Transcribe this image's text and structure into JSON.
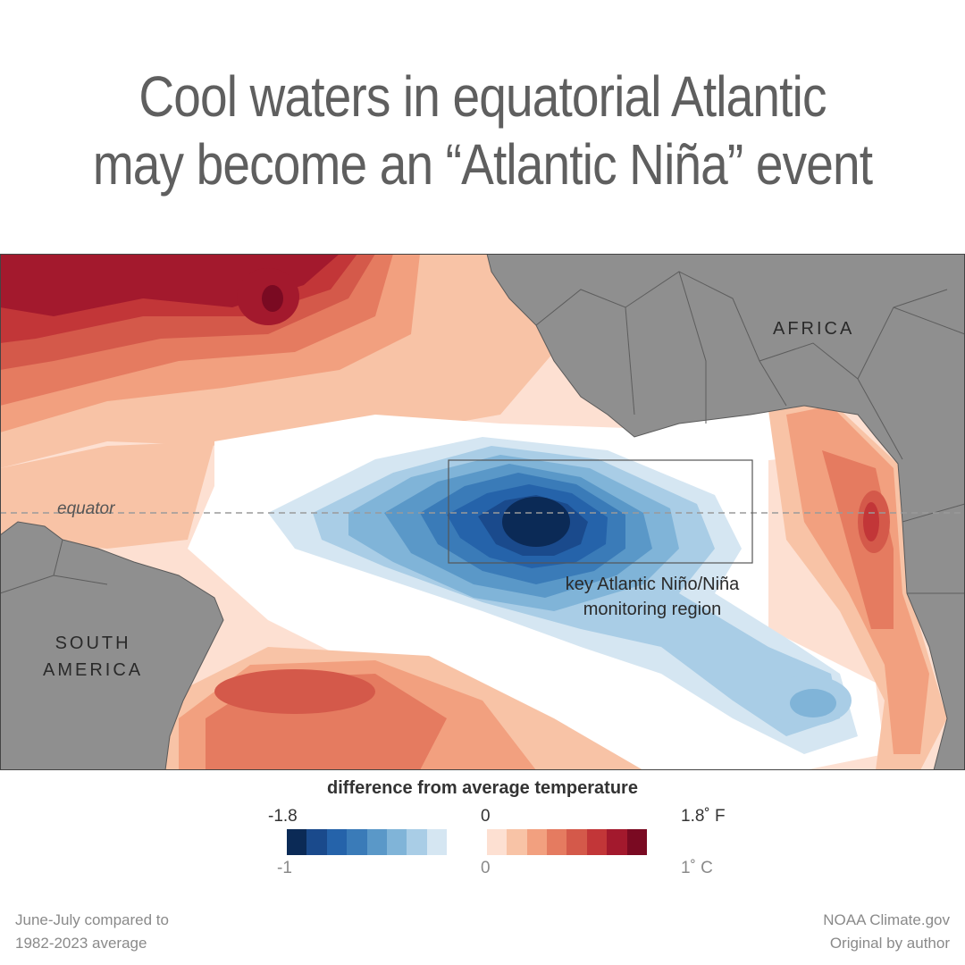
{
  "title": {
    "line1": "Cool waters in equatorial Atlantic",
    "line2": "may become an “Atlantic Niña” event"
  },
  "map": {
    "labels": {
      "africa": "AFRICA",
      "south_america_line1": "SOUTH",
      "south_america_line2": "AMERICA",
      "equator": "equator",
      "region_line1": "key Atlantic Niño/Niña",
      "region_line2": "monitoring region"
    },
    "colors": {
      "land": "#8f8f8f",
      "border": "#5a5a5a",
      "equator_line": "#9a9a9a",
      "region_box": "#555555"
    }
  },
  "legend": {
    "title": "difference from average temperature",
    "fahrenheit": {
      "min": "-1.8",
      "mid": "0",
      "max": "1.8˚ F"
    },
    "celsius": {
      "min": "-1",
      "mid": "0",
      "max": "1˚ C"
    },
    "colors": [
      "#0b2a56",
      "#1a4a8c",
      "#2563aa",
      "#3a7bb8",
      "#5a98c8",
      "#80b4d8",
      "#a9cde6",
      "#d5e6f2",
      "#ffffff",
      "#ffffff",
      "#fde0d2",
      "#f8c3a6",
      "#f2a07f",
      "#e57b60",
      "#d4594a",
      "#c23638",
      "#a3192d",
      "#7a0a22"
    ]
  },
  "footer": {
    "left_line1": "June-July compared to",
    "left_line2": "1982-2023 average",
    "right_line1": "NOAA Climate.gov",
    "right_line2": "Original by author"
  }
}
